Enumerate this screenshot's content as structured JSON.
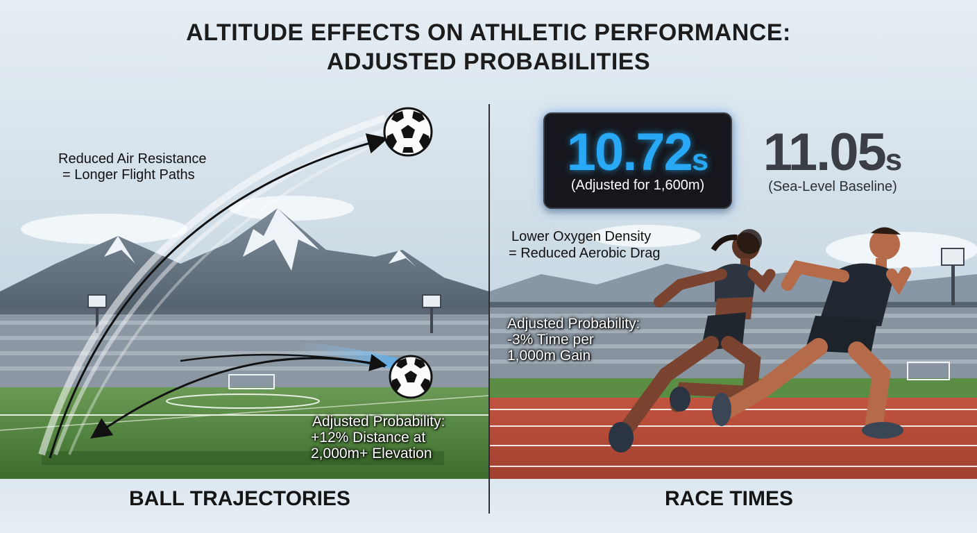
{
  "title": {
    "line1": "ALTITUDE EFFECTS ON ATHLETIC PERFORMANCE:",
    "line2": "ADJUSTED PROBABILITIES"
  },
  "left_panel": {
    "note_line1": "Reduced Air Resistance",
    "note_line2": "= Longer Flight Paths",
    "probability_line1": "Adjusted Probability:",
    "probability_line2": "+12% Distance at",
    "probability_line3": "2,000m+ Elevation",
    "section_label": "BALL TRAJECTORIES"
  },
  "right_panel": {
    "timer_value": "10.72",
    "timer_unit": "s",
    "timer_caption": "(Adjusted for 1,600m)",
    "baseline_value": "11.05",
    "baseline_unit": "s",
    "baseline_caption": "(Sea-Level Baseline)",
    "note_line1": "Lower Oxygen Density",
    "note_line2": "= Reduced Aerobic Drag",
    "probability_line1": "Adjusted Probability:",
    "probability_line2": "-3% Time per",
    "probability_line3": "1,000m Gain",
    "section_label": "RACE TIMES"
  },
  "colors": {
    "timer_accent": "#29a8f5",
    "track": "#b5483a",
    "grass": "#4f8a3a",
    "sky": "#dfe9f1"
  }
}
